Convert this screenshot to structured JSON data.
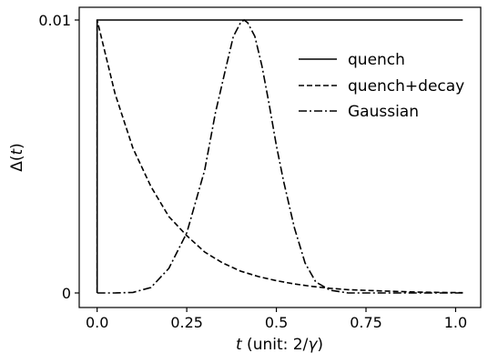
{
  "chart_data": {
    "type": "line",
    "xlabel": "t (unit: 2/γ)",
    "xlabel_parts": {
      "var": "t",
      "unit": " (unit: 2/",
      "gamma": "γ",
      "close": ")"
    },
    "ylabel": "Δ(t)",
    "ylabel_parts": {
      "delta": "Δ(",
      "var": "t",
      "close": ")"
    },
    "xlim": [
      -0.05,
      1.07
    ],
    "ylim": [
      0,
      0.01
    ],
    "xticks": [
      0.0,
      0.25,
      0.5,
      0.75,
      1.0
    ],
    "xtick_labels": [
      "0.0",
      "0.25",
      "0.5",
      "0.75",
      "1.0"
    ],
    "yticks": [
      0,
      0.01
    ],
    "ytick_labels": [
      "0",
      "0.01"
    ],
    "grid": false,
    "legend_position": "top-right",
    "series": [
      {
        "name": "quench",
        "style": "solid",
        "color": "#000000",
        "x": [
          0.0,
          0.0,
          0.25,
          0.5,
          0.75,
          1.02
        ],
        "y": [
          0.0,
          0.01,
          0.01,
          0.01,
          0.01,
          0.01
        ]
      },
      {
        "name": "quench+decay",
        "style": "dashed",
        "color": "#000000",
        "x": [
          0.0,
          0.0,
          0.05,
          0.1,
          0.15,
          0.2,
          0.25,
          0.3,
          0.35,
          0.4,
          0.45,
          0.5,
          0.55,
          0.6,
          0.65,
          0.7,
          0.8,
          0.9,
          1.02
        ],
        "y": [
          0.0,
          0.01,
          0.0073,
          0.0053,
          0.0039,
          0.0028,
          0.0021,
          0.0015,
          0.0011,
          0.0008,
          0.0006,
          0.00045,
          0.00033,
          0.00024,
          0.00017,
          0.00012,
          7e-05,
          3e-05,
          1e-05
        ]
      },
      {
        "name": "Gaussian",
        "style": "dashdot",
        "color": "#000000",
        "x": [
          0.0,
          0.05,
          0.1,
          0.15,
          0.2,
          0.25,
          0.3,
          0.33,
          0.36,
          0.38,
          0.4,
          0.41,
          0.42,
          0.44,
          0.46,
          0.48,
          0.5,
          0.52,
          0.55,
          0.58,
          0.61,
          0.65,
          0.7,
          0.8,
          0.9,
          1.02
        ],
        "y": [
          0.0,
          0.0,
          2e-05,
          0.0002,
          0.0009,
          0.0022,
          0.0045,
          0.0066,
          0.0083,
          0.0094,
          0.0099,
          0.01,
          0.0099,
          0.0094,
          0.0083,
          0.0069,
          0.0054,
          0.0041,
          0.0024,
          0.0011,
          0.0004,
          0.0001,
          0.0,
          0.0,
          0.0,
          0.0
        ]
      }
    ]
  }
}
